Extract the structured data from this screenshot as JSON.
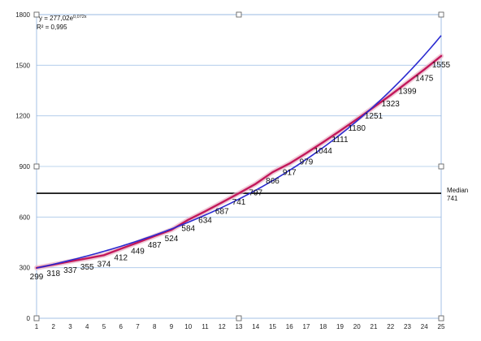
{
  "chart_data": {
    "type": "line",
    "x": [
      1,
      2,
      3,
      4,
      5,
      6,
      7,
      8,
      9,
      10,
      11,
      12,
      13,
      14,
      15,
      16,
      17,
      18,
      19,
      20,
      21,
      22,
      23,
      24,
      25
    ],
    "series": [
      {
        "values": [
          299,
          318,
          337,
          355,
          374,
          412,
          449,
          487,
          524,
          584,
          634,
          687,
          741,
          797,
          866,
          917,
          979,
          1044,
          1111,
          1180,
          1251,
          1323,
          1399,
          1475,
          1555
        ],
        "color": "#c2185b"
      }
    ],
    "trendline": {
      "type": "exponential",
      "equation": "y = 277,02e",
      "equation_exponent": "0,072x",
      "r_squared": "R² = 0,995",
      "a": 277.02,
      "b": 0.072,
      "color": "#2a2ad0"
    },
    "median": {
      "label": "Median",
      "value_text": "741",
      "value": 741,
      "color": "#000000"
    },
    "x_ticks": [
      "1",
      "2",
      "3",
      "4",
      "5",
      "6",
      "7",
      "8",
      "9",
      "10",
      "11",
      "12",
      "13",
      "14",
      "15",
      "16",
      "17",
      "18",
      "19",
      "20",
      "21",
      "22",
      "23",
      "24",
      "25"
    ],
    "y_ticks": [
      "0",
      "300",
      "600",
      "900",
      "1200",
      "1500",
      "1800"
    ],
    "y_tick_values": [
      0,
      300,
      600,
      900,
      1200,
      1500,
      1800
    ],
    "xlim": [
      1,
      25
    ],
    "ylim": [
      0,
      1800
    ],
    "grid": "horizontal",
    "title": "",
    "xlabel": "",
    "ylabel": ""
  }
}
